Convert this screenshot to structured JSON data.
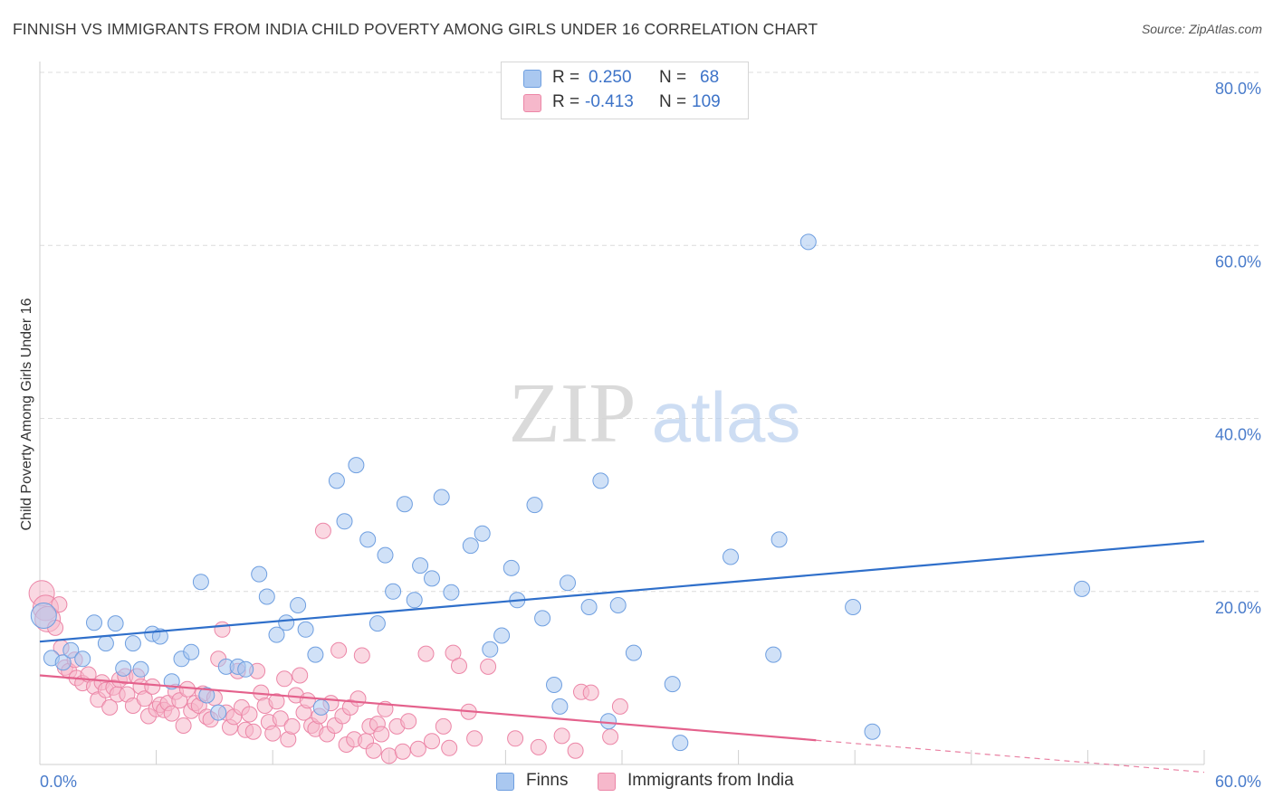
{
  "header": {
    "title": "FINNISH VS IMMIGRANTS FROM INDIA CHILD POVERTY AMONG GIRLS UNDER 16 CORRELATION CHART",
    "source": "Source: ZipAtlas.com"
  },
  "watermark": {
    "zip": "ZIP",
    "atlas": "atlas"
  },
  "legend": {
    "rows": [
      {
        "r_label": "R =",
        "r_value": "0.250",
        "n_label": "N =",
        "n_value": "68"
      },
      {
        "r_label": "R =",
        "r_value": "-0.413",
        "n_label": "N =",
        "n_value": "109"
      }
    ]
  },
  "bottom_legend": {
    "finns": "Finns",
    "india": "Immigrants from India"
  },
  "colors": {
    "finns_fill": "#aac8f0",
    "finns_stroke": "#6f9fe0",
    "finns_line": "#2f6fca",
    "india_fill": "#f6b8cb",
    "india_stroke": "#ec86a7",
    "india_line": "#e4618c",
    "tick": "#4a7ccb",
    "grid": "#dcdcdc"
  },
  "chart_data": {
    "type": "scatter",
    "title": "FINNISH VS IMMIGRANTS FROM INDIA CHILD POVERTY AMONG GIRLS UNDER 16 CORRELATION CHART",
    "xlabel": "",
    "ylabel": "Child Poverty Among Girls Under 16",
    "xlim": [
      0,
      60
    ],
    "ylim": [
      0,
      80
    ],
    "x_tick_labels": [
      "0.0%",
      "60.0%"
    ],
    "y_ticks": [
      20,
      40,
      60,
      80
    ],
    "y_tick_labels": [
      "20.0%",
      "40.0%",
      "60.0%",
      "80.0%"
    ],
    "grid": "horizontal dashed",
    "legend_position": "top-center",
    "series": [
      {
        "name": "Finns",
        "R": 0.25,
        "N": 68,
        "trend": {
          "x": [
            0,
            60
          ],
          "y": [
            14.2,
            25.8
          ]
        },
        "points": [
          [
            0.2,
            17.2
          ],
          [
            0.6,
            12.3
          ],
          [
            1.2,
            11.8
          ],
          [
            1.6,
            13.2
          ],
          [
            2.2,
            12.2
          ],
          [
            2.8,
            16.4
          ],
          [
            3.4,
            14.0
          ],
          [
            3.9,
            16.3
          ],
          [
            4.3,
            11.1
          ],
          [
            4.8,
            14.0
          ],
          [
            5.2,
            11.0
          ],
          [
            5.8,
            15.1
          ],
          [
            6.2,
            14.8
          ],
          [
            6.8,
            9.6
          ],
          [
            7.3,
            12.2
          ],
          [
            7.8,
            13.0
          ],
          [
            8.3,
            21.1
          ],
          [
            8.6,
            8.0
          ],
          [
            9.2,
            6.0
          ],
          [
            9.6,
            11.3
          ],
          [
            10.2,
            11.3
          ],
          [
            10.6,
            11.0
          ],
          [
            11.3,
            22.0
          ],
          [
            11.7,
            19.4
          ],
          [
            12.2,
            15.0
          ],
          [
            12.7,
            16.4
          ],
          [
            13.3,
            18.4
          ],
          [
            13.7,
            15.6
          ],
          [
            14.2,
            12.7
          ],
          [
            14.5,
            6.6
          ],
          [
            15.3,
            32.8
          ],
          [
            15.7,
            28.1
          ],
          [
            16.3,
            34.6
          ],
          [
            16.9,
            26.0
          ],
          [
            17.4,
            16.3
          ],
          [
            17.8,
            24.2
          ],
          [
            18.2,
            20.0
          ],
          [
            18.8,
            30.1
          ],
          [
            19.3,
            19.0
          ],
          [
            19.6,
            23.0
          ],
          [
            20.2,
            21.5
          ],
          [
            20.7,
            30.9
          ],
          [
            21.2,
            19.9
          ],
          [
            22.2,
            25.3
          ],
          [
            22.8,
            26.7
          ],
          [
            23.2,
            13.3
          ],
          [
            23.8,
            14.9
          ],
          [
            24.3,
            22.7
          ],
          [
            24.6,
            19.0
          ],
          [
            25.5,
            30.0
          ],
          [
            25.9,
            16.9
          ],
          [
            26.8,
            6.7
          ],
          [
            26.5,
            9.2
          ],
          [
            27.2,
            21.0
          ],
          [
            28.3,
            18.2
          ],
          [
            28.9,
            32.8
          ],
          [
            29.3,
            5.0
          ],
          [
            29.8,
            18.4
          ],
          [
            30.6,
            12.9
          ],
          [
            32.6,
            9.3
          ],
          [
            33.0,
            2.5
          ],
          [
            35.6,
            24.0
          ],
          [
            37.8,
            12.7
          ],
          [
            38.1,
            26.0
          ],
          [
            39.6,
            60.4
          ],
          [
            41.9,
            18.2
          ],
          [
            42.9,
            3.8
          ],
          [
            53.7,
            20.3
          ]
        ]
      },
      {
        "name": "Immigrants from India",
        "R": -0.413,
        "N": 109,
        "trend": {
          "x": [
            0,
            40
          ],
          "y": [
            10.3,
            2.8
          ]
        },
        "trend_dashed": {
          "x": [
            40,
            60
          ],
          "y": [
            2.8,
            -0.9
          ]
        },
        "points": [
          [
            0.1,
            19.8
          ],
          [
            0.3,
            18.1
          ],
          [
            0.4,
            16.8
          ],
          [
            0.8,
            15.8
          ],
          [
            1.0,
            18.5
          ],
          [
            1.1,
            13.5
          ],
          [
            1.3,
            11.2
          ],
          [
            1.5,
            10.8
          ],
          [
            1.8,
            12.1
          ],
          [
            1.9,
            10.0
          ],
          [
            2.2,
            9.4
          ],
          [
            2.5,
            10.4
          ],
          [
            2.8,
            9.0
          ],
          [
            3.0,
            7.5
          ],
          [
            3.2,
            9.5
          ],
          [
            3.4,
            8.6
          ],
          [
            3.6,
            6.6
          ],
          [
            3.8,
            8.9
          ],
          [
            4.0,
            8.1
          ],
          [
            4.1,
            9.8
          ],
          [
            4.4,
            10.2
          ],
          [
            4.5,
            8.1
          ],
          [
            4.8,
            6.8
          ],
          [
            5.0,
            10.2
          ],
          [
            5.2,
            9.0
          ],
          [
            5.4,
            7.6
          ],
          [
            5.6,
            5.6
          ],
          [
            5.8,
            9.0
          ],
          [
            6.0,
            6.4
          ],
          [
            6.2,
            6.9
          ],
          [
            6.4,
            6.3
          ],
          [
            6.6,
            7.1
          ],
          [
            6.8,
            5.9
          ],
          [
            7.0,
            8.4
          ],
          [
            7.2,
            7.4
          ],
          [
            7.4,
            4.5
          ],
          [
            7.6,
            8.7
          ],
          [
            7.8,
            6.2
          ],
          [
            8.0,
            7.1
          ],
          [
            8.2,
            6.8
          ],
          [
            8.4,
            8.2
          ],
          [
            8.6,
            5.5
          ],
          [
            8.8,
            5.2
          ],
          [
            9.0,
            7.7
          ],
          [
            9.2,
            12.2
          ],
          [
            9.4,
            15.6
          ],
          [
            9.6,
            6.0
          ],
          [
            9.8,
            4.3
          ],
          [
            10.0,
            5.5
          ],
          [
            10.2,
            10.8
          ],
          [
            10.4,
            6.6
          ],
          [
            10.6,
            4.0
          ],
          [
            10.8,
            5.8
          ],
          [
            11.0,
            3.8
          ],
          [
            11.2,
            10.8
          ],
          [
            11.4,
            8.3
          ],
          [
            11.6,
            6.8
          ],
          [
            11.8,
            4.9
          ],
          [
            12.0,
            3.6
          ],
          [
            12.2,
            7.3
          ],
          [
            12.4,
            5.3
          ],
          [
            12.6,
            9.9
          ],
          [
            12.8,
            2.9
          ],
          [
            13.0,
            4.4
          ],
          [
            13.2,
            8.0
          ],
          [
            13.4,
            10.3
          ],
          [
            13.6,
            6.0
          ],
          [
            13.8,
            7.4
          ],
          [
            14.0,
            4.5
          ],
          [
            14.2,
            4.1
          ],
          [
            14.4,
            5.6
          ],
          [
            14.6,
            27.0
          ],
          [
            14.8,
            3.5
          ],
          [
            15.0,
            7.1
          ],
          [
            15.2,
            4.5
          ],
          [
            15.4,
            13.2
          ],
          [
            15.6,
            5.6
          ],
          [
            15.8,
            2.3
          ],
          [
            16.0,
            6.6
          ],
          [
            16.2,
            2.9
          ],
          [
            16.4,
            7.6
          ],
          [
            16.6,
            12.6
          ],
          [
            16.8,
            2.7
          ],
          [
            17.0,
            4.4
          ],
          [
            17.2,
            1.6
          ],
          [
            17.4,
            4.7
          ],
          [
            17.6,
            3.5
          ],
          [
            17.8,
            6.4
          ],
          [
            18.0,
            1.0
          ],
          [
            18.4,
            4.4
          ],
          [
            18.7,
            1.5
          ],
          [
            19.0,
            5.0
          ],
          [
            19.5,
            1.8
          ],
          [
            19.9,
            12.8
          ],
          [
            20.2,
            2.7
          ],
          [
            20.8,
            4.4
          ],
          [
            21.1,
            1.9
          ],
          [
            21.3,
            12.9
          ],
          [
            21.6,
            11.4
          ],
          [
            22.1,
            6.1
          ],
          [
            22.4,
            3.0
          ],
          [
            23.1,
            11.3
          ],
          [
            24.5,
            3.0
          ],
          [
            25.7,
            2.0
          ],
          [
            26.9,
            3.3
          ],
          [
            27.6,
            1.6
          ],
          [
            27.9,
            8.4
          ],
          [
            28.4,
            8.3
          ],
          [
            29.4,
            3.2
          ],
          [
            29.9,
            6.7
          ]
        ]
      }
    ]
  }
}
